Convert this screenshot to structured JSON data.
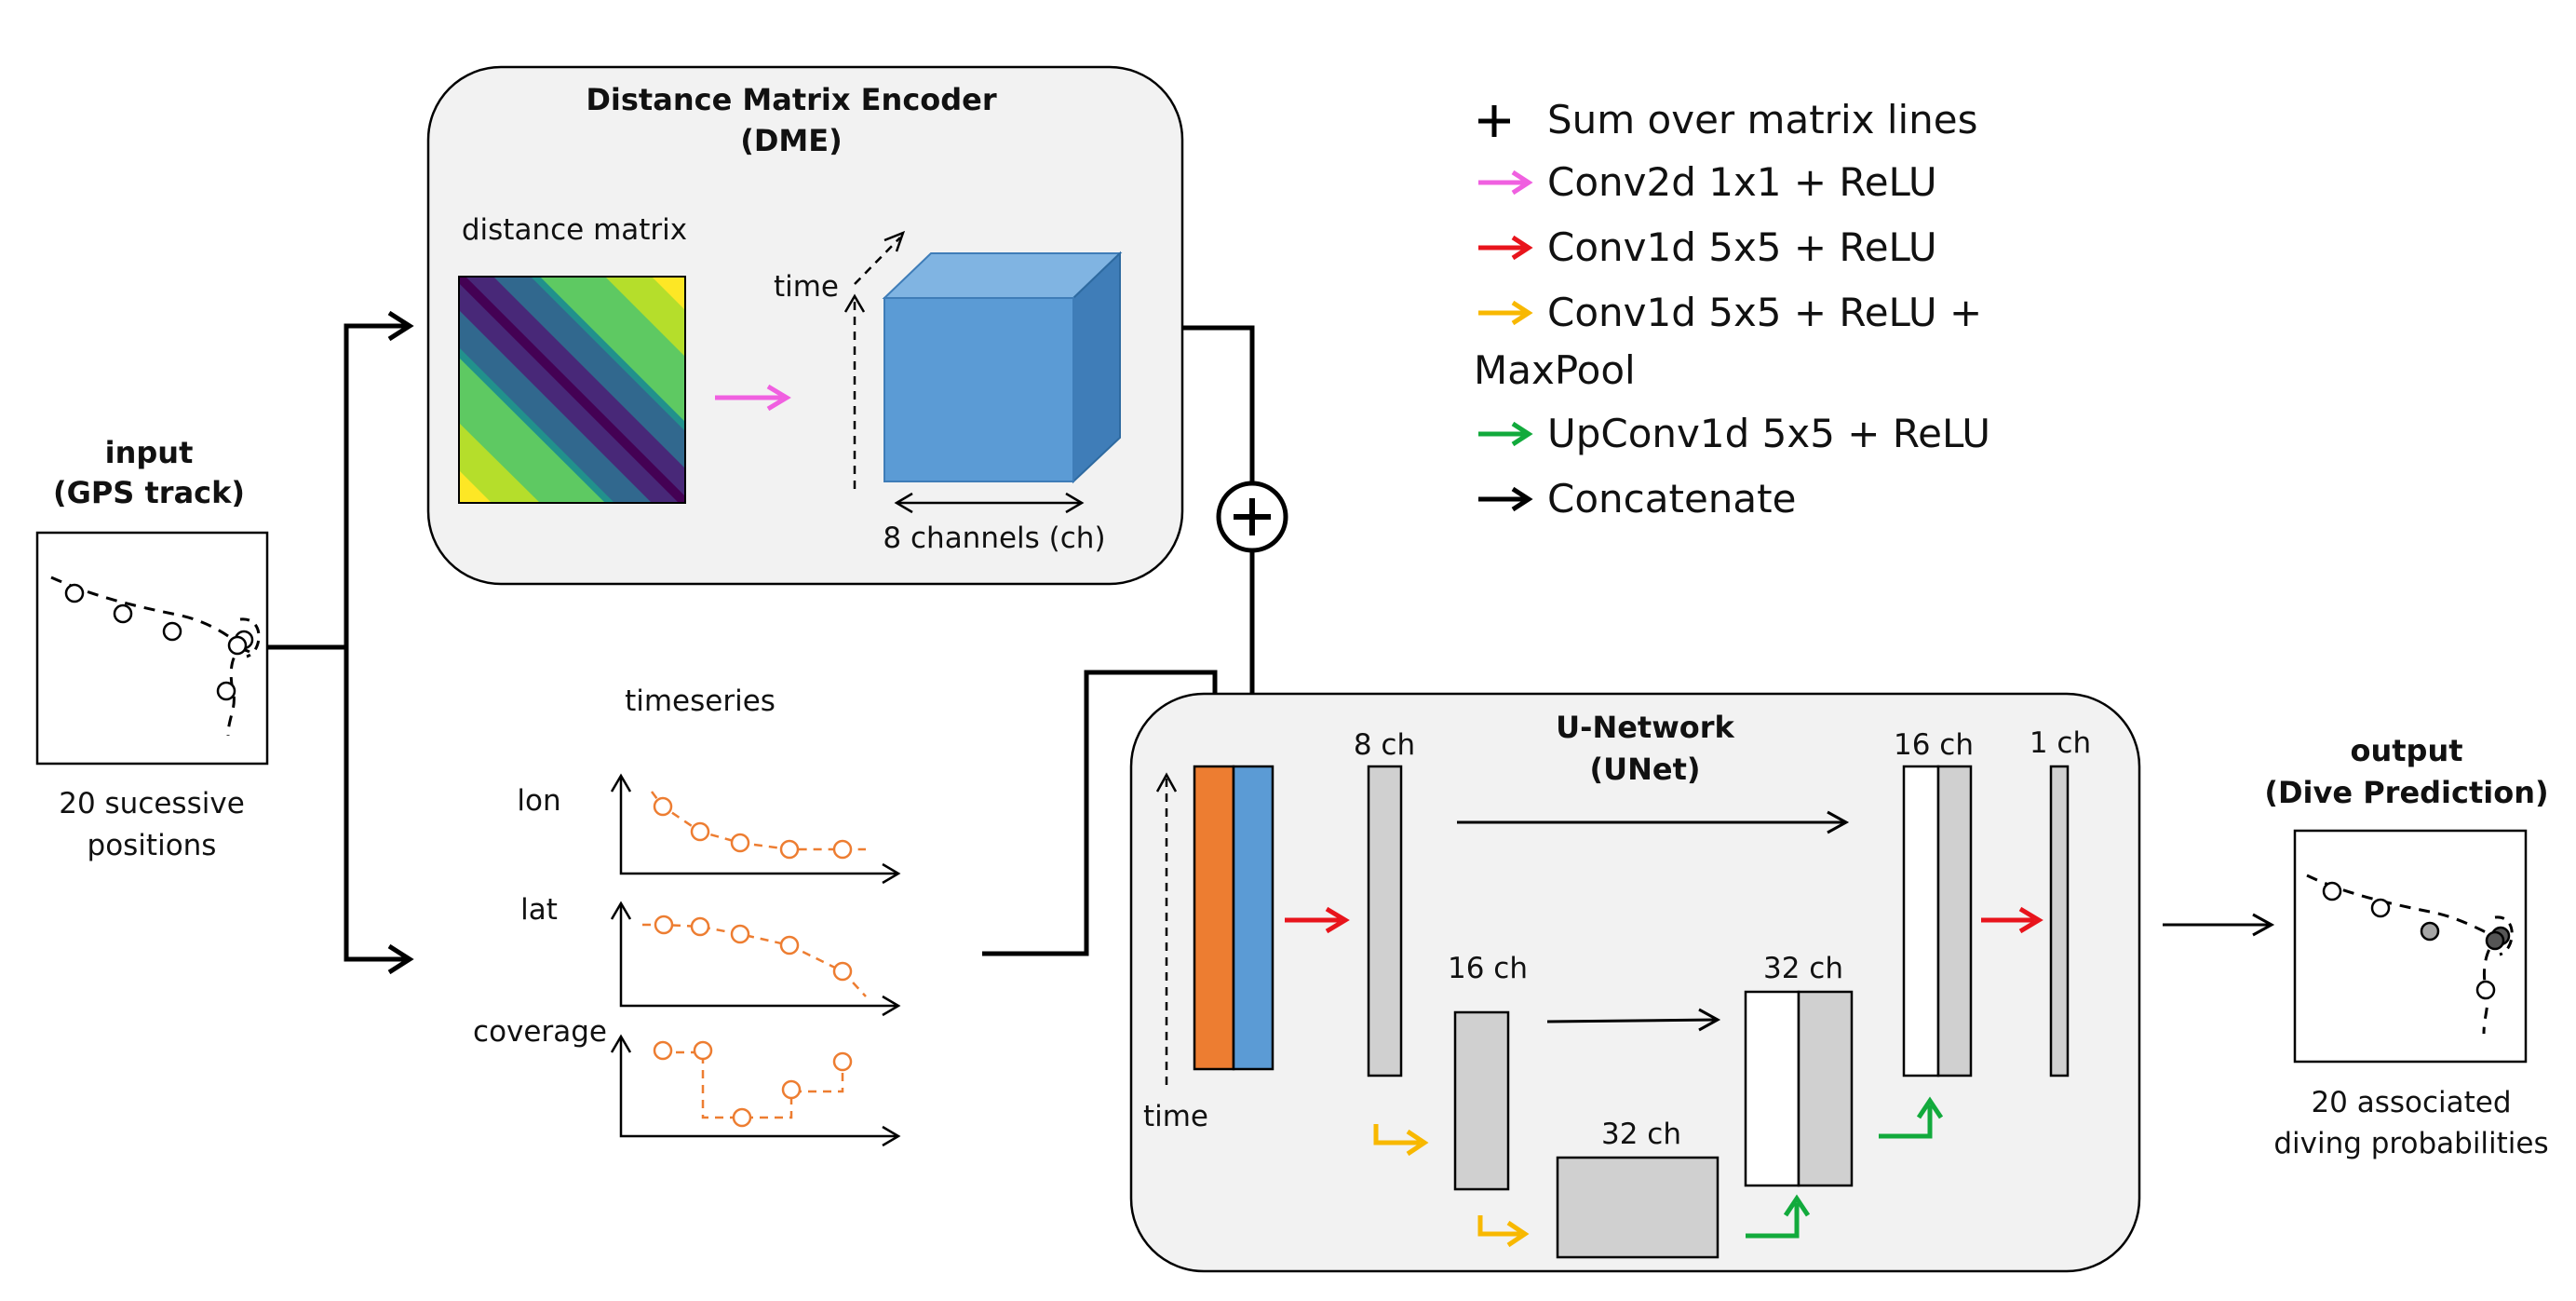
{
  "input": {
    "title_line1": "input",
    "title_line2": "(GPS track)",
    "caption_line1": "20 sucessive",
    "caption_line2": "positions"
  },
  "dme": {
    "title_line1": "Distance Matrix Encoder",
    "title_line2": "(DME)",
    "matrix_label": "distance matrix",
    "time_label": "time",
    "channels_label": "8 channels (ch)"
  },
  "timeseries": {
    "title": "timeseries",
    "labels": [
      "lon",
      "lat",
      "coverage"
    ]
  },
  "unet": {
    "title_line1": "U-Network",
    "title_line2": "(UNet)",
    "time_label": "time",
    "blocks": {
      "enc1": "8 ch",
      "enc2": "16 ch",
      "bottleneck": "32 ch",
      "dec2": "32 ch",
      "dec1": "16 ch",
      "out": "1 ch"
    }
  },
  "output": {
    "title_line1": "output",
    "title_line2": "(Dive Prediction)",
    "caption_line1": "20 associated",
    "caption_line2": "diving probabilities"
  },
  "legend": {
    "items": [
      {
        "label": "Sum over matrix lines",
        "symbol": "plus"
      },
      {
        "label": "Conv2d 1x1 + ReLU",
        "color": "#f060e0"
      },
      {
        "label": "Conv1d 5x5 + ReLU",
        "color": "#e8141c"
      },
      {
        "label": "Conv1d 5x5 + ReLU +",
        "label2": "MaxPool",
        "color": "#f8b800"
      },
      {
        "label": "UpConv1d 5x5 + ReLU",
        "color": "#12aa3c"
      },
      {
        "label": "Concatenate",
        "color": "#000000"
      }
    ]
  },
  "colors": {
    "panel_fill": "#f2f2f2",
    "cube_front": "#5b9bd5",
    "cube_top": "#80b4e2",
    "cube_side": "#3f7db8",
    "orange_channel": "#ed7d31",
    "blue_channel": "#5b9bd5",
    "block_gray": "#d0d0d0",
    "timeseries": "#ed7d31"
  }
}
